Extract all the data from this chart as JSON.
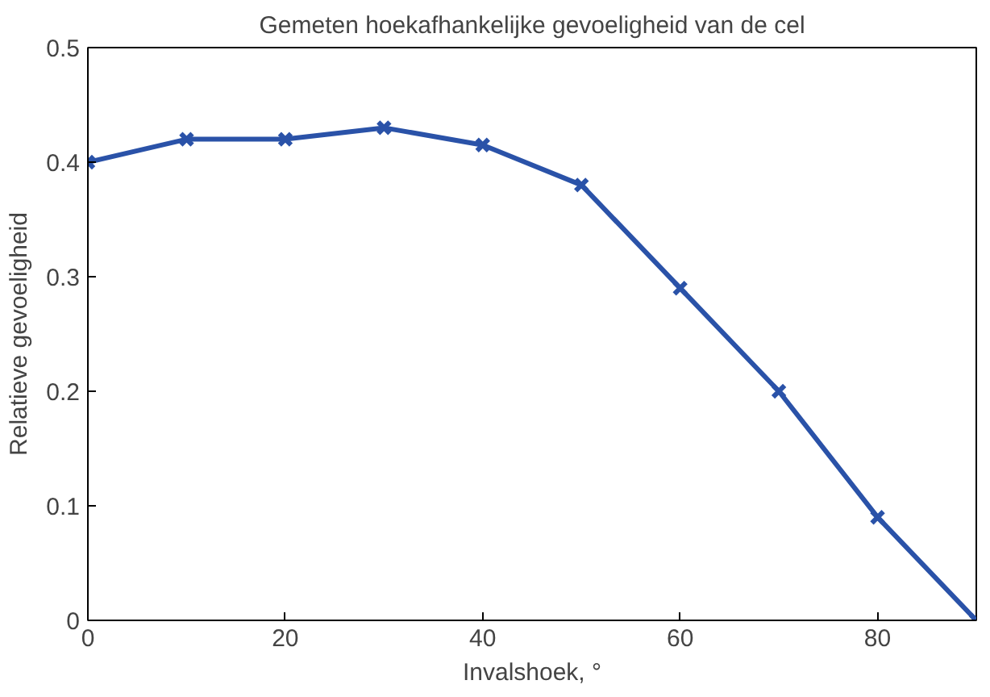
{
  "chart_data": {
    "type": "line",
    "title": "Gemeten hoekafhankelijke gevoeligheid van de cel",
    "xlabel": "Invalshoek, °",
    "ylabel": "Relatieve gevoeligheid",
    "x": [
      0,
      10,
      20,
      30,
      40,
      50,
      60,
      70,
      80,
      90
    ],
    "series": [
      {
        "color": "#2a52a8",
        "values": [
          0.4,
          0.42,
          0.42,
          0.43,
          0.415,
          0.38,
          0.29,
          0.2,
          0.09,
          0.0
        ]
      }
    ],
    "xlim": [
      0,
      90
    ],
    "ylim": [
      0,
      0.5
    ],
    "xticks": [
      0,
      20,
      40,
      60,
      80
    ],
    "yticks": [
      0,
      0.1,
      0.2,
      0.3,
      0.4,
      0.5
    ],
    "grid": false,
    "marker": "cross",
    "line_style": "solid"
  }
}
